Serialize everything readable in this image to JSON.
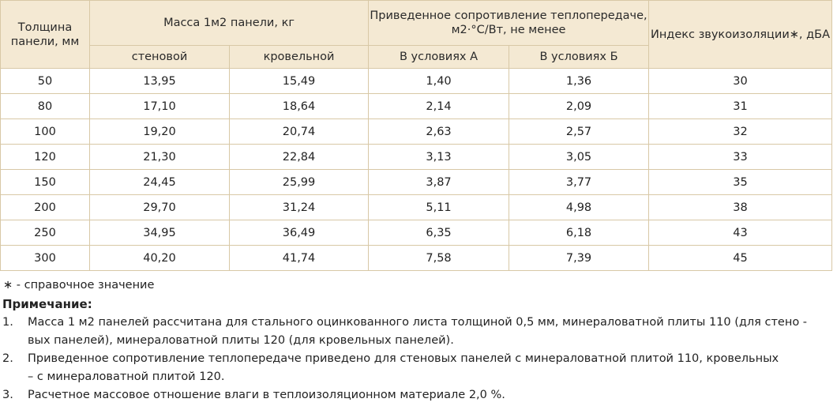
{
  "table": {
    "header": {
      "thickness": "Толщина панели, мм",
      "mass": "Масса 1м2 панели, кг",
      "mass_wall": "стеновой",
      "mass_roof": "кровельной",
      "resistance": "Приведенное сопротивление теплопередаче, м2·°С/Вт, не  менее",
      "cond_a": "В условиях А",
      "cond_b": "В условиях Б",
      "sound": "Индекс звукоизоляции∗, дБА"
    },
    "rows": [
      [
        "50",
        "13,95",
        "15,49",
        "1,40",
        "1,36",
        "30"
      ],
      [
        "80",
        "17,10",
        "18,64",
        "2,14",
        "2,09",
        "31"
      ],
      [
        "100",
        "19,20",
        "20,74",
        "2,63",
        "2,57",
        "32"
      ],
      [
        "120",
        "21,30",
        "22,84",
        "3,13",
        "3,05",
        "33"
      ],
      [
        "150",
        "24,45",
        "25,99",
        "3,87",
        "3,77",
        "35"
      ],
      [
        "200",
        "29,70",
        "31,24",
        "5,11",
        "4,98",
        "38"
      ],
      [
        "250",
        "34,95",
        "36,49",
        "6,35",
        "6,18",
        "43"
      ],
      [
        "300",
        "40,20",
        "41,74",
        "7,58",
        "7,39",
        "45"
      ]
    ]
  },
  "footnote": "∗ - справочное значение",
  "notes": {
    "title": "Примечание:",
    "items": [
      {
        "num": "1.",
        "lines": [
          "Масса 1 м2 панелей рассчитана для стального оцинкованного листа толщиной 0,5 мм, минераловатной плиты 110 (для стено  -",
          "вых панелей), минераловатной плиты 120 (для кровельных панелей)."
        ]
      },
      {
        "num": "2.",
        "lines": [
          "Приведенное сопротивление теплопередаче приведено для стеновых панелей с  минераловатной плитой 110, кровельных",
          "– с минераловатной плитой 120."
        ]
      },
      {
        "num": "3.",
        "lines": [
          "Расчетное массовое отношение влаги в теплоизоляционном материале 2,0 %."
        ]
      }
    ]
  }
}
